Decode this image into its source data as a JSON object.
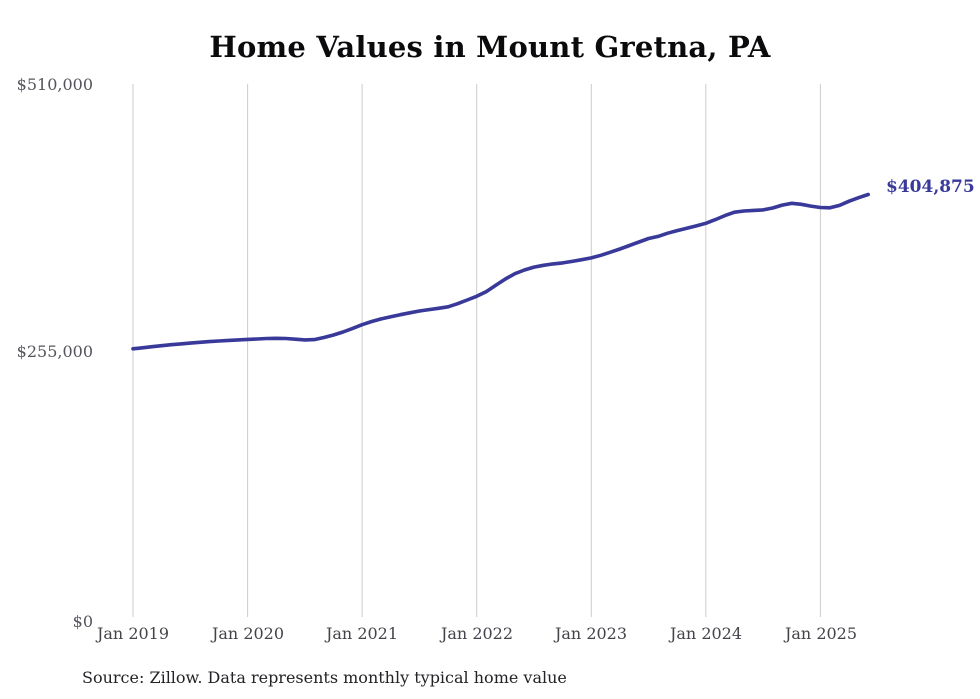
{
  "title": "Home Values in Mount Gretna, PA",
  "source_note": "Source: Zillow. Data represents monthly typical home value",
  "colors": {
    "line": "#39399a",
    "grid": "#cccccc",
    "y_tick_text": "#54555c",
    "x_tick_text": "#43444a",
    "title_text": "#0b0b0d",
    "source_text": "#222326",
    "background": "#ffffff"
  },
  "y_axis": {
    "ticks": [
      {
        "label": "$510,000",
        "value": 510000
      },
      {
        "label": "$255,000",
        "value": 255000
      },
      {
        "label": "$0",
        "value": 0
      }
    ]
  },
  "x_axis": {
    "ticks": [
      "Jan 2019",
      "Jan 2020",
      "Jan 2021",
      "Jan 2022",
      "Jan 2023",
      "Jan 2024",
      "Jan 2025"
    ]
  },
  "chart_data": {
    "type": "line",
    "title": "Home Values in Mount Gretna, PA",
    "series_name": "Monthly typical home value",
    "xlabel": "",
    "ylabel": "",
    "ylim": [
      0,
      510000
    ],
    "grid": "vertical-only",
    "legend_position": "none",
    "annotation": {
      "text": "$404,875",
      "x": "Jun 2025",
      "y": 404875
    },
    "x": [
      "Jan 2019",
      "Feb 2019",
      "Mar 2019",
      "Apr 2019",
      "May 2019",
      "Jun 2019",
      "Jul 2019",
      "Aug 2019",
      "Sep 2019",
      "Oct 2019",
      "Nov 2019",
      "Dec 2019",
      "Jan 2020",
      "Feb 2020",
      "Mar 2020",
      "Apr 2020",
      "May 2020",
      "Jun 2020",
      "Jul 2020",
      "Aug 2020",
      "Sep 2020",
      "Oct 2020",
      "Nov 2020",
      "Dec 2020",
      "Jan 2021",
      "Feb 2021",
      "Mar 2021",
      "Apr 2021",
      "May 2021",
      "Jun 2021",
      "Jul 2021",
      "Aug 2021",
      "Sep 2021",
      "Oct 2021",
      "Nov 2021",
      "Dec 2021",
      "Jan 2022",
      "Feb 2022",
      "Mar 2022",
      "Apr 2022",
      "May 2022",
      "Jun 2022",
      "Jul 2022",
      "Aug 2022",
      "Sep 2022",
      "Oct 2022",
      "Nov 2022",
      "Dec 2022",
      "Jan 2023",
      "Feb 2023",
      "Mar 2023",
      "Apr 2023",
      "May 2023",
      "Jun 2023",
      "Jul 2023",
      "Aug 2023",
      "Sep 2023",
      "Oct 2023",
      "Nov 2023",
      "Dec 2023",
      "Jan 2024",
      "Feb 2024",
      "Mar 2024",
      "Apr 2024",
      "May 2024",
      "Jun 2024",
      "Jul 2024",
      "Aug 2024",
      "Sep 2024",
      "Oct 2024",
      "Nov 2024",
      "Dec 2024",
      "Jan 2025",
      "Feb 2025",
      "Mar 2025",
      "Apr 2025",
      "May 2025",
      "Jun 2025"
    ],
    "values": [
      258000,
      259000,
      260000,
      261000,
      261900,
      262700,
      263500,
      264200,
      264900,
      265500,
      266000,
      266500,
      267000,
      267400,
      267800,
      268000,
      267800,
      267200,
      266500,
      266800,
      268800,
      271200,
      274000,
      277500,
      281000,
      284000,
      286500,
      288500,
      290500,
      292300,
      294000,
      295300,
      296600,
      298000,
      301000,
      304500,
      308000,
      312500,
      318500,
      324500,
      329500,
      333000,
      335800,
      337500,
      338800,
      339800,
      341200,
      342800,
      344500,
      347000,
      350000,
      353000,
      356300,
      359700,
      363000,
      365000,
      368000,
      370500,
      372800,
      375000,
      377500,
      381000,
      384800,
      388000,
      389200,
      389700,
      390200,
      392000,
      394800,
      396500,
      395500,
      393800,
      392500,
      392200,
      394500,
      398500,
      401800,
      404875
    ]
  }
}
